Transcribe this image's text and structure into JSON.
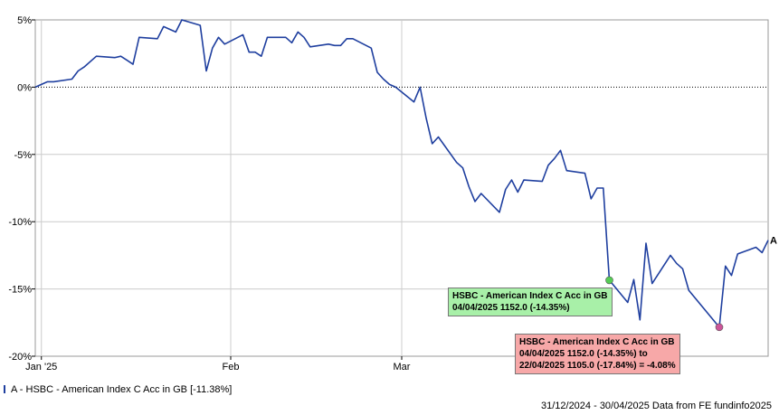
{
  "chart_data": {
    "type": "line",
    "title": "",
    "xlabel": "",
    "ylabel": "",
    "ylim": [
      -20,
      5
    ],
    "y_ticks": [
      5,
      0,
      -5,
      -10,
      -15,
      -20
    ],
    "y_tick_labels": [
      "5%",
      "0%",
      "-5%",
      "-10%",
      "-15%",
      "-20%"
    ],
    "x_ticks": [
      {
        "label": "Jan '25",
        "date": "2025-01-01"
      },
      {
        "label": "Feb",
        "date": "2025-02-01"
      },
      {
        "label": "Mar",
        "date": "2025-03-01"
      }
    ],
    "xlim": [
      "2024-12-31",
      "2025-04-30"
    ],
    "grid": true,
    "zero_line": "dotted",
    "series": [
      {
        "name": "A - HSBC - American Index C Acc in GB [-11.38%]",
        "end_label": "A",
        "color": "#1f3f9f",
        "points": [
          [
            "2024-12-31",
            0.0
          ],
          [
            "2025-01-02",
            0.4
          ],
          [
            "2025-01-03",
            0.4
          ],
          [
            "2025-01-06",
            0.6
          ],
          [
            "2025-01-07",
            1.2
          ],
          [
            "2025-01-08",
            1.5
          ],
          [
            "2025-01-10",
            2.3
          ],
          [
            "2025-01-13",
            2.2
          ],
          [
            "2025-01-14",
            2.3
          ],
          [
            "2025-01-15",
            2.0
          ],
          [
            "2025-01-16",
            1.7
          ],
          [
            "2025-01-17",
            3.7
          ],
          [
            "2025-01-20",
            3.6
          ],
          [
            "2025-01-21",
            4.5
          ],
          [
            "2025-01-22",
            4.3
          ],
          [
            "2025-01-23",
            4.1
          ],
          [
            "2025-01-24",
            5.0
          ],
          [
            "2025-01-27",
            4.6
          ],
          [
            "2025-01-28",
            1.2
          ],
          [
            "2025-01-29",
            2.9
          ],
          [
            "2025-01-30",
            3.7
          ],
          [
            "2025-01-31",
            3.2
          ],
          [
            "2025-02-03",
            3.9
          ],
          [
            "2025-02-04",
            2.6
          ],
          [
            "2025-02-05",
            2.6
          ],
          [
            "2025-02-06",
            2.3
          ],
          [
            "2025-02-07",
            3.7
          ],
          [
            "2025-02-10",
            3.7
          ],
          [
            "2025-02-11",
            3.3
          ],
          [
            "2025-02-12",
            4.1
          ],
          [
            "2025-02-13",
            3.7
          ],
          [
            "2025-02-14",
            3.0
          ],
          [
            "2025-02-17",
            3.2
          ],
          [
            "2025-02-18",
            3.1
          ],
          [
            "2025-02-19",
            3.1
          ],
          [
            "2025-02-20",
            3.6
          ],
          [
            "2025-02-21",
            3.6
          ],
          [
            "2025-02-24",
            2.9
          ],
          [
            "2025-02-25",
            1.1
          ],
          [
            "2025-02-26",
            0.6
          ],
          [
            "2025-02-27",
            0.2
          ],
          [
            "2025-02-28",
            0.0
          ],
          [
            "2025-03-03",
            -1.1
          ],
          [
            "2025-03-04",
            0.0
          ],
          [
            "2025-03-05",
            -2.3
          ],
          [
            "2025-03-06",
            -4.2
          ],
          [
            "2025-03-07",
            -3.7
          ],
          [
            "2025-03-10",
            -5.6
          ],
          [
            "2025-03-11",
            -6.0
          ],
          [
            "2025-03-12",
            -7.4
          ],
          [
            "2025-03-13",
            -8.5
          ],
          [
            "2025-03-14",
            -7.9
          ],
          [
            "2025-03-17",
            -9.3
          ],
          [
            "2025-03-18",
            -7.6
          ],
          [
            "2025-03-19",
            -6.9
          ],
          [
            "2025-03-20",
            -7.8
          ],
          [
            "2025-03-21",
            -6.9
          ],
          [
            "2025-03-24",
            -7.0
          ],
          [
            "2025-03-25",
            -5.8
          ],
          [
            "2025-03-26",
            -5.3
          ],
          [
            "2025-03-27",
            -4.7
          ],
          [
            "2025-03-28",
            -6.2
          ],
          [
            "2025-03-31",
            -6.4
          ],
          [
            "2025-04-01",
            -8.3
          ],
          [
            "2025-04-02",
            -7.5
          ],
          [
            "2025-04-03",
            -7.5
          ],
          [
            "2025-04-04",
            -14.35
          ],
          [
            "2025-04-07",
            -16.0
          ],
          [
            "2025-04-08",
            -14.3
          ],
          [
            "2025-04-09",
            -17.3
          ],
          [
            "2025-04-10",
            -11.6
          ],
          [
            "2025-04-11",
            -14.6
          ],
          [
            "2025-04-14",
            -12.5
          ],
          [
            "2025-04-15",
            -13.1
          ],
          [
            "2025-04-16",
            -13.5
          ],
          [
            "2025-04-17",
            -15.1
          ],
          [
            "2025-04-22",
            -17.84
          ],
          [
            "2025-04-23",
            -13.3
          ],
          [
            "2025-04-24",
            -14.0
          ],
          [
            "2025-04-25",
            -12.4
          ],
          [
            "2025-04-28",
            -11.9
          ],
          [
            "2025-04-29",
            -12.3
          ],
          [
            "2025-04-30",
            -11.38
          ]
        ]
      }
    ],
    "markers": [
      {
        "date": "2025-04-04",
        "value": -14.35,
        "color": "#55cc55"
      },
      {
        "date": "2025-04-22",
        "value": -17.84,
        "color": "#cc5599"
      }
    ]
  },
  "tooltip_start": {
    "line1": "HSBC - American Index C Acc in GB",
    "line2": "04/04/2025  1152.0 (-14.35%)"
  },
  "tooltip_range": {
    "line1": "HSBC - American Index C Acc in GB",
    "line2": "04/04/2025  1152.0 (-14.35%)  to",
    "line3": "22/04/2025  1105.0 (-17.84%)  = -4.08%"
  },
  "legend": {
    "text": "A - HSBC - American Index C Acc in GB [-11.38%]"
  },
  "footer": {
    "text": "31/12/2024 - 30/04/2025 Data from FE fundinfo2025"
  }
}
